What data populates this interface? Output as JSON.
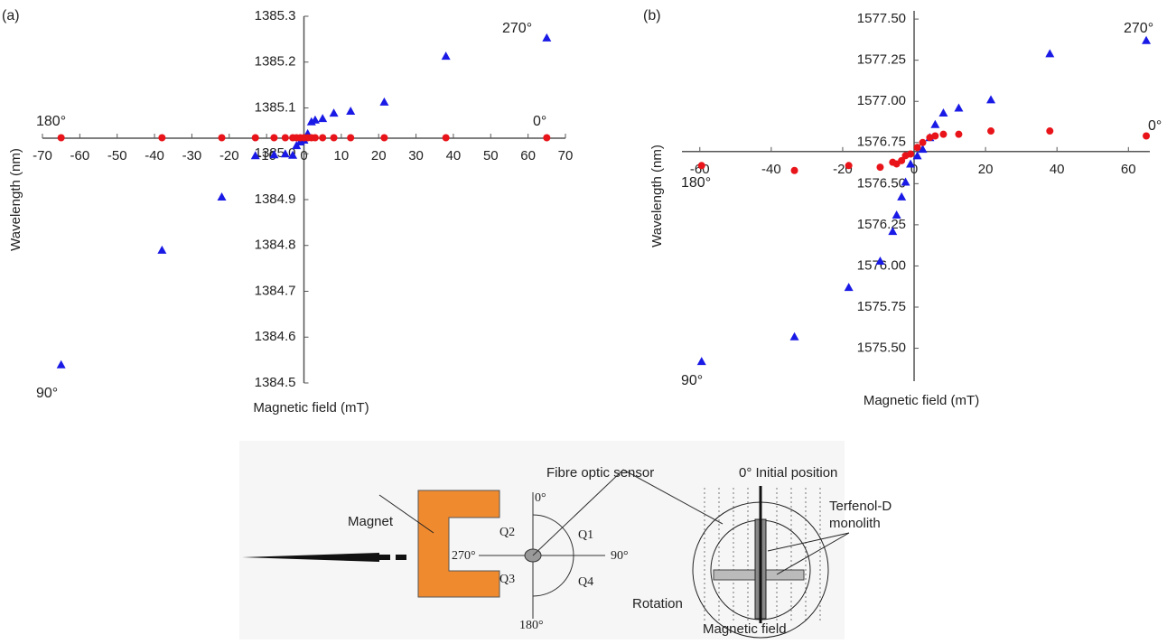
{
  "chart_data": [
    {
      "type": "scatter",
      "annotations": [
        "(a)",
        "270°",
        "180°",
        "0°",
        "90°"
      ],
      "xlabel": "Magnetic field (mT)",
      "ylabel": "Wavelength (nm)",
      "x": [
        -65,
        -38,
        -22,
        -13,
        -8,
        -5,
        -3,
        -2,
        -1,
        0,
        1,
        2,
        3,
        5,
        8,
        12.5,
        21.5,
        38,
        65
      ],
      "series": [
        {
          "color": "#1a1ae6",
          "marker": "triangle",
          "values": [
            1384.54,
            1384.79,
            1384.906,
            1384.996,
            1384.998,
            1385.0,
            1384.997,
            1385.018,
            1385.026,
            1385.03,
            1385.044,
            1385.07,
            1385.074,
            1385.077,
            1385.089,
            1385.093,
            1385.113,
            1385.213,
            1385.253
          ]
        },
        {
          "color": "#e8141a",
          "marker": "circle",
          "values": [
            1385.035,
            1385.035,
            1385.035,
            1385.035,
            1385.035,
            1385.035,
            1385.035,
            1385.035,
            1385.035,
            1385.035,
            1385.035,
            1385.035,
            1385.035,
            1385.035,
            1385.035,
            1385.035,
            1385.035,
            1385.035,
            1385.035
          ]
        }
      ],
      "xlim": [
        -70,
        70
      ],
      "ylim": [
        1384.5,
        1385.3
      ],
      "x_axis_crossing": 1385.034,
      "xticks": [
        -70,
        -60,
        -50,
        -40,
        -30,
        -20,
        -10,
        0,
        10,
        20,
        30,
        40,
        50,
        60,
        70
      ],
      "yticks": [
        1384.5,
        1384.6,
        1384.7,
        1384.8,
        1384.9,
        {
          "value": 1385,
          "label": "1385.0"
        },
        1385.1,
        1385.2,
        1385.3
      ],
      "grid": false
    },
    {
      "type": "scatter",
      "annotations": [
        "(b)",
        "270°",
        "0°",
        "180°",
        "90°"
      ],
      "xlabel": "Magnetic field (mT)",
      "ylabel": "Wavelength (nm)",
      "x": [
        -59.5,
        -33.5,
        -18.3,
        -9.5,
        -6,
        -4.9,
        -3.5,
        -2.4,
        -1,
        0.9,
        2.4,
        4.4,
        5.9,
        8.2,
        12.5,
        21.5,
        38,
        65
      ],
      "series": [
        {
          "color": "#1a1ae6",
          "marker": "triangle",
          "values": [
            1575.42,
            1575.57,
            1575.87,
            1576.03,
            1576.21,
            1576.31,
            1576.42,
            1576.51,
            1576.62,
            1576.67,
            1576.71,
            1576.78,
            1576.86,
            1576.93,
            1576.96,
            1577.01,
            1577.29,
            1577.37
          ]
        },
        {
          "color": "#e8141a",
          "marker": "circle",
          "values": [
            1576.61,
            1576.58,
            1576.61,
            1576.6,
            1576.63,
            1576.62,
            1576.64,
            1576.67,
            1576.68,
            1576.72,
            1576.75,
            1576.78,
            1576.79,
            1576.8,
            1576.8,
            1576.82,
            1576.82,
            1576.79
          ]
        }
      ],
      "xlim": [
        -65,
        66
      ],
      "ylim": [
        1575.3,
        1577.55
      ],
      "x_axis_crossing": 1576.695,
      "xticks": [
        -60,
        -40,
        -20,
        0,
        20,
        40,
        60
      ],
      "yticks": [
        {
          "value": 1575.5,
          "label": "1575.50"
        },
        {
          "value": 1575.75,
          "label": "1575.75"
        },
        {
          "value": 1576,
          "label": "1576.00"
        },
        {
          "value": 1576.25,
          "label": "1576.25"
        },
        {
          "value": 1576.5,
          "label": "1576.50"
        },
        {
          "value": 1576.75,
          "label": "1576.75"
        },
        {
          "value": 1577,
          "label": "1577.00"
        },
        {
          "value": 1577.25,
          "label": "1577.25"
        },
        {
          "value": 1577.5,
          "label": "1577.50"
        }
      ],
      "grid": false
    }
  ],
  "diagram": {
    "magnet": "Magnet",
    "sensor": "Fibre optic sensor",
    "initial": "0° Initial position",
    "monolith": [
      "Terfenol-D",
      "monolith"
    ],
    "rotation": "Rotation",
    "field": "Magnetic field",
    "angles": [
      "0°",
      "90°",
      "180°",
      "270°"
    ],
    "quadrants": [
      "Q1",
      "Q2",
      "Q3",
      "Q4"
    ]
  }
}
